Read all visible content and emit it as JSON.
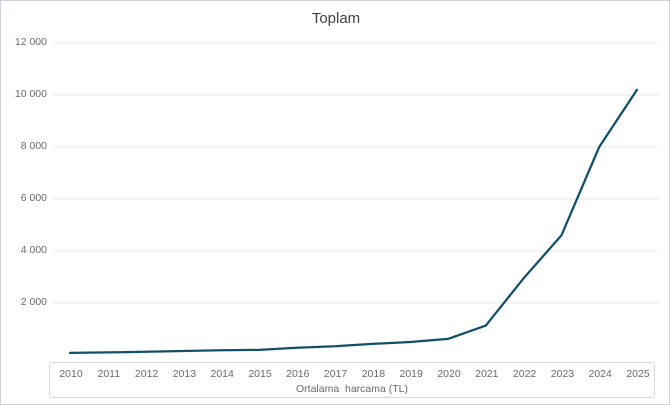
{
  "title": "Toplam",
  "colors": {
    "line": "#135068",
    "grid": "#e5e5e5",
    "axis_text": "#666a6e",
    "title_text": "#3f3f3f",
    "axis_box_border": "#d9d9d9",
    "frame_border": "#ccd3d9"
  },
  "chart_data": {
    "type": "line",
    "title": "Toplam",
    "xlabel": "Ortalama  harcama (TL)",
    "ylabel": "",
    "x": [
      "2010",
      "2011",
      "2012",
      "2013",
      "2014",
      "2015",
      "2016",
      "2017",
      "2018",
      "2019",
      "2020",
      "2021",
      "2022",
      "2023",
      "2024",
      "2025"
    ],
    "series": [
      {
        "name": "Toplam",
        "values": [
          80,
          100,
          125,
          155,
          185,
          195,
          280,
          335,
          425,
          500,
          620,
          1130,
          2950,
          4600,
          8000,
          10200
        ]
      }
    ],
    "ylim": [
      0,
      12000
    ],
    "yticks": [
      2000,
      4000,
      6000,
      8000,
      10000,
      12000
    ],
    "ytick_labels": [
      "2 000",
      "4 000",
      "6 000",
      "8 000",
      "10 000",
      "12 000"
    ],
    "grid": "horizontal-only",
    "legend": "none",
    "line_color": "#135068"
  }
}
